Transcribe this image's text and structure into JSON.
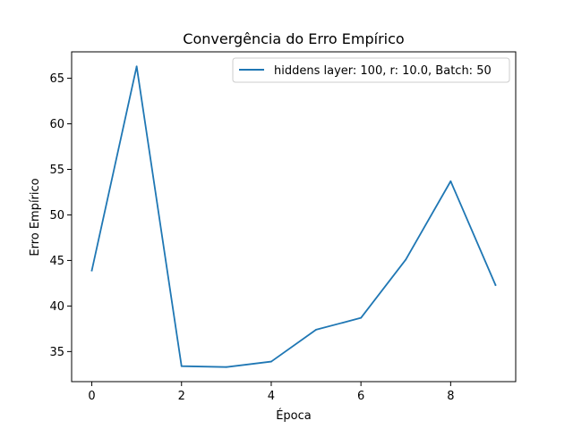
{
  "chart_data": {
    "type": "line",
    "title": "Convergência do Erro Empírico",
    "xlabel": "Época",
    "ylabel": "Erro Empírico",
    "xlim": [
      -0.45,
      9.45
    ],
    "ylim": [
      31.7,
      67.9
    ],
    "xticks": [
      0,
      2,
      4,
      6,
      8
    ],
    "yticks": [
      35,
      40,
      45,
      50,
      55,
      60,
      65
    ],
    "grid": false,
    "legend_position": "top-right",
    "series": [
      {
        "name": "hiddens layer: 100, r: 10.0, Batch: 50",
        "color": "#1f77b4",
        "x": [
          0,
          1,
          2,
          3,
          4,
          5,
          6,
          7,
          8,
          9
        ],
        "y": [
          43.9,
          66.3,
          33.4,
          33.3,
          33.9,
          37.4,
          38.7,
          45.1,
          53.7,
          42.3
        ]
      }
    ]
  }
}
